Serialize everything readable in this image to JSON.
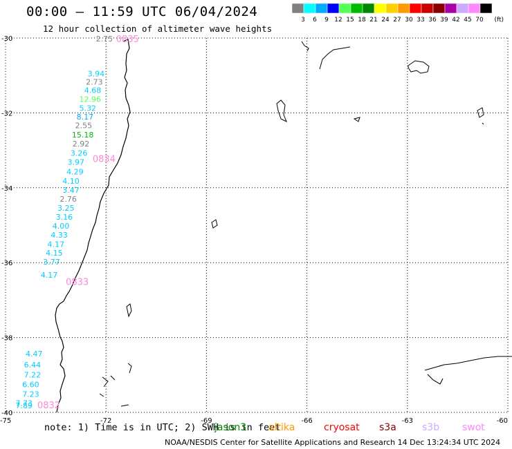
{
  "title": "00:00 – 11:59 UTC 06/04/2024",
  "subtitle": "12 hour collection of altimeter wave heights",
  "colorbar": {
    "unit": "(ft)",
    "bins": [
      {
        "label": "3",
        "color": "#808080"
      },
      {
        "label": "6",
        "color": "#00ffff"
      },
      {
        "label": "9",
        "color": "#00aaff"
      },
      {
        "label": "12",
        "color": "#0000ff"
      },
      {
        "label": "15",
        "color": "#55ff55"
      },
      {
        "label": "18",
        "color": "#00bb00"
      },
      {
        "label": "21",
        "color": "#008800"
      },
      {
        "label": "24",
        "color": "#ffff00"
      },
      {
        "label": "27",
        "color": "#ffd000"
      },
      {
        "label": "30",
        "color": "#ff9900"
      },
      {
        "label": "33",
        "color": "#ff0000"
      },
      {
        "label": "36",
        "color": "#cc0000"
      },
      {
        "label": "39",
        "color": "#880000"
      },
      {
        "label": "42",
        "color": "#aa00aa"
      },
      {
        "label": "45",
        "color": "#ccaaff"
      },
      {
        "label": "70",
        "color": "#ff88ff"
      },
      {
        "label": "",
        "color": "#000000"
      }
    ]
  },
  "axes": {
    "lat": [
      {
        "value": -30,
        "label": "-30"
      },
      {
        "value": -32,
        "label": "-32"
      },
      {
        "value": -34,
        "label": "-34"
      },
      {
        "value": -36,
        "label": "-36"
      },
      {
        "value": -38,
        "label": "-38"
      },
      {
        "value": -40,
        "label": "-40"
      }
    ],
    "lon": [
      {
        "value": -75,
        "label": "-75"
      },
      {
        "value": -72,
        "label": "-72"
      },
      {
        "value": -69,
        "label": "-69"
      },
      {
        "value": -66,
        "label": "-66"
      },
      {
        "value": -63,
        "label": "-63"
      },
      {
        "value": -60,
        "label": "-60"
      }
    ],
    "lat_range": [
      -40,
      -30
    ],
    "lon_range": [
      -75,
      -60
    ]
  },
  "wave_labels": [
    {
      "text": "2.75",
      "lon": -72.3,
      "lat": -30.02,
      "color": "#808080"
    },
    {
      "text": "3.94",
      "lon": -72.55,
      "lat": -30.95,
      "color": "#00ccff"
    },
    {
      "text": "2.73",
      "lon": -72.6,
      "lat": -31.17,
      "color": "#808080"
    },
    {
      "text": "4.68",
      "lon": -72.65,
      "lat": -31.39,
      "color": "#00ccff"
    },
    {
      "text": "12.96",
      "lon": -72.8,
      "lat": -31.63,
      "color": "#55ff55"
    },
    {
      "text": "5.32",
      "lon": -72.8,
      "lat": -31.87,
      "color": "#00ccff"
    },
    {
      "text": "8.17",
      "lon": -72.88,
      "lat": -32.1,
      "color": "#00aaff"
    },
    {
      "text": "2.55",
      "lon": -72.92,
      "lat": -32.33,
      "color": "#808080"
    },
    {
      "text": "15.18",
      "lon": -73.02,
      "lat": -32.58,
      "color": "#00bb00"
    },
    {
      "text": "2.92",
      "lon": -73.0,
      "lat": -32.82,
      "color": "#808080"
    },
    {
      "text": "3.26",
      "lon": -73.06,
      "lat": -33.07,
      "color": "#00ccff"
    },
    {
      "text": "3.97",
      "lon": -73.15,
      "lat": -33.31,
      "color": "#00ccff"
    },
    {
      "text": "4.29",
      "lon": -73.18,
      "lat": -33.57,
      "color": "#00ccff"
    },
    {
      "text": "4.10",
      "lon": -73.3,
      "lat": -33.82,
      "color": "#00ccff"
    },
    {
      "text": "3.47",
      "lon": -73.3,
      "lat": -34.06,
      "color": "#00ccff"
    },
    {
      "text": "2.76",
      "lon": -73.38,
      "lat": -34.3,
      "color": "#808080"
    },
    {
      "text": "3.25",
      "lon": -73.45,
      "lat": -34.54,
      "color": "#00ccff"
    },
    {
      "text": "3.16",
      "lon": -73.5,
      "lat": -34.78,
      "color": "#00ccff"
    },
    {
      "text": "4.00",
      "lon": -73.6,
      "lat": -35.02,
      "color": "#00ccff"
    },
    {
      "text": "4.33",
      "lon": -73.65,
      "lat": -35.26,
      "color": "#00ccff"
    },
    {
      "text": "4.17",
      "lon": -73.75,
      "lat": -35.51,
      "color": "#00ccff"
    },
    {
      "text": "4.15",
      "lon": -73.8,
      "lat": -35.74,
      "color": "#00ccff"
    },
    {
      "text": "3.77",
      "lon": -73.88,
      "lat": -35.98,
      "color": "#00ccff"
    },
    {
      "text": "4.17",
      "lon": -73.95,
      "lat": -36.33,
      "color": "#00ccff"
    },
    {
      "text": "4.47",
      "lon": -74.4,
      "lat": -38.43,
      "color": "#00ccff"
    },
    {
      "text": "6.44",
      "lon": -74.45,
      "lat": -38.73,
      "color": "#00ccff"
    },
    {
      "text": "7.22",
      "lon": -74.45,
      "lat": -38.99,
      "color": "#00ccff"
    },
    {
      "text": "6.60",
      "lon": -74.5,
      "lat": -39.25,
      "color": "#00ccff"
    },
    {
      "text": "7.23",
      "lon": -74.5,
      "lat": -39.51,
      "color": "#00ccff"
    },
    {
      "text": "7.73",
      "lon": -74.7,
      "lat": -39.75,
      "color": "#00ccff"
    },
    {
      "text": "7.89",
      "lon": -74.7,
      "lat": -39.82,
      "color": "#00ccff"
    }
  ],
  "time_labels": [
    {
      "text": "0835",
      "lon": -71.7,
      "lat": -30.02
    },
    {
      "text": "0834",
      "lon": -72.4,
      "lat": -33.22
    },
    {
      "text": "0833",
      "lon": -73.2,
      "lat": -36.5
    },
    {
      "text": "0832",
      "lon": -74.05,
      "lat": -39.8
    }
  ],
  "time_label_color": "#ff88dd",
  "note": "note:  1) Time is in UTC; 2) SWH is in feet",
  "satellites": [
    {
      "name": "jason3",
      "color": "#008800"
    },
    {
      "name": "altika",
      "color": "#ff9900"
    },
    {
      "name": "cryosat",
      "color": "#ff0000"
    },
    {
      "name": "s3a",
      "color": "#880000"
    },
    {
      "name": "s3b",
      "color": "#ccaaff"
    },
    {
      "name": "swot",
      "color": "#ff88ff"
    }
  ],
  "credit": "NOAA/NESDIS Center for Satellite Applications and Research     14 Dec 13:24:34 UTC 2024"
}
